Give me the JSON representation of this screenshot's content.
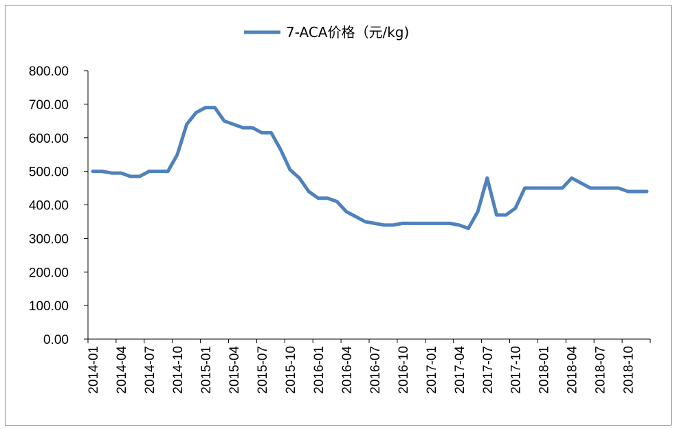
{
  "chart_data": {
    "type": "line",
    "title": "",
    "xlabel": "",
    "ylabel": "",
    "ylim": [
      0,
      800
    ],
    "y_ticks": [
      "0.00",
      "100.00",
      "200.00",
      "300.00",
      "400.00",
      "500.00",
      "600.00",
      "700.00",
      "800.00"
    ],
    "x_tick_labels": [
      "2014-01",
      "2014-04",
      "2014-07",
      "2014-10",
      "2015-01",
      "2015-04",
      "2015-07",
      "2015-10",
      "2016-01",
      "2016-04",
      "2016-07",
      "2016-10",
      "2017-01",
      "2017-04",
      "2017-07",
      "2017-10",
      "2018-01",
      "2018-04",
      "2018-07",
      "2018-10"
    ],
    "legend_position": "top-center",
    "grid": false,
    "series": [
      {
        "name": "7-ACA价格（元/kg)",
        "color": "#4F81BD",
        "x": [
          "2014-01",
          "2014-02",
          "2014-03",
          "2014-04",
          "2014-05",
          "2014-06",
          "2014-07",
          "2014-08",
          "2014-09",
          "2014-10",
          "2014-11",
          "2014-12",
          "2015-01",
          "2015-02",
          "2015-03",
          "2015-04",
          "2015-05",
          "2015-06",
          "2015-07",
          "2015-08",
          "2015-09",
          "2015-10",
          "2015-11",
          "2015-12",
          "2016-01",
          "2016-02",
          "2016-03",
          "2016-04",
          "2016-05",
          "2016-06",
          "2016-07",
          "2016-08",
          "2016-09",
          "2016-10",
          "2016-11",
          "2016-12",
          "2017-01",
          "2017-02",
          "2017-03",
          "2017-04",
          "2017-05",
          "2017-06",
          "2017-07",
          "2017-08",
          "2017-09",
          "2017-10",
          "2017-11",
          "2017-12",
          "2018-01",
          "2018-02",
          "2018-03",
          "2018-04",
          "2018-05",
          "2018-06",
          "2018-07",
          "2018-08",
          "2018-09",
          "2018-10",
          "2018-11",
          "2018-12"
        ],
        "values": [
          500,
          500,
          495,
          495,
          485,
          485,
          500,
          500,
          500,
          550,
          640,
          675,
          690,
          690,
          650,
          640,
          630,
          630,
          615,
          615,
          565,
          505,
          480,
          440,
          420,
          420,
          410,
          380,
          365,
          350,
          345,
          340,
          340,
          345,
          345,
          345,
          345,
          345,
          345,
          340,
          330,
          380,
          480,
          370,
          370,
          390,
          450,
          450,
          450,
          450,
          450,
          480,
          465,
          450,
          450,
          450,
          450,
          440,
          440,
          440
        ]
      }
    ]
  }
}
